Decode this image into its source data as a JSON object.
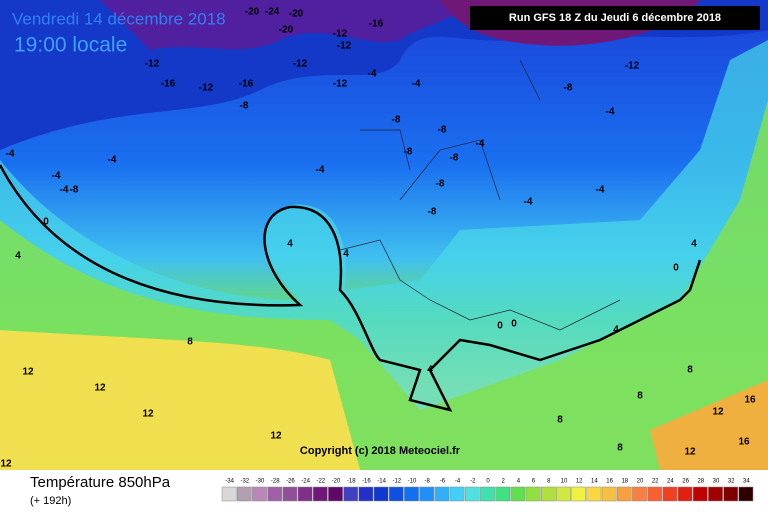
{
  "header": {
    "title": "Vendredi 14 décembre 2018",
    "time": "19:00 locale",
    "run": "Run GFS 18 Z du Jeudi 6 décembre 2018"
  },
  "map": {
    "copyright": "Copyright (c) 2018 Meteociel.fr",
    "labels": [
      -24,
      -20,
      -20,
      -20,
      -16,
      -12,
      -12,
      -12,
      -16,
      -12,
      -12,
      -16,
      -8,
      -12,
      -4,
      -4,
      -8,
      -8,
      -8,
      -8,
      -8,
      -8,
      -4,
      -4,
      -4,
      -4,
      -8,
      -4,
      -4,
      0,
      4,
      4,
      4,
      4,
      8,
      12,
      12,
      12,
      12,
      16,
      16,
      -4,
      -4,
      0,
      0,
      4,
      8,
      8,
      12,
      12,
      8,
      -8,
      -12,
      -4,
      0,
      4,
      8,
      12
    ]
  },
  "footer": {
    "parameter": "Température 850hPa",
    "lead": "(+ 192h)"
  },
  "legend": {
    "values": [
      -34,
      -32,
      -30,
      -28,
      -26,
      -24,
      -22,
      -20,
      -18,
      -16,
      -14,
      -12,
      -10,
      -8,
      -6,
      -4,
      -2,
      0,
      2,
      4,
      6,
      8,
      10,
      12,
      14,
      16,
      18,
      20,
      22,
      24,
      26,
      28,
      30,
      32,
      34
    ],
    "colors": [
      "#d8d8d8",
      "#b0a0b0",
      "#b888b8",
      "#a060a8",
      "#905098",
      "#803088",
      "#701878",
      "#600868",
      "#4040c0",
      "#2030c8",
      "#1038d0",
      "#1050e0",
      "#1070f0",
      "#2090f8",
      "#30b0f8",
      "#40d0f8",
      "#50e0e0",
      "#40e0b0",
      "#40e080",
      "#60e050",
      "#90e040",
      "#b0e040",
      "#d0e840",
      "#f0f040",
      "#f8d840",
      "#f8c040",
      "#f8a040",
      "#f88040",
      "#f86030",
      "#f04020",
      "#e02010",
      "#c00000",
      "#a00000",
      "#800000",
      "#300000"
    ]
  }
}
